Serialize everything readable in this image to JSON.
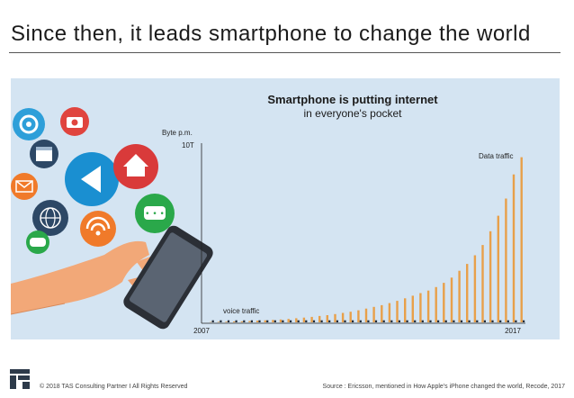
{
  "page": {
    "title": "Since then, it leads smartphone to change the world",
    "copyright": "© 2018 TAS Consulting Partner  I  All Rights Reserved",
    "source": "Source : Ericsson, mentioned in How Apple's iPhone changed the world, Recode, 2017"
  },
  "colors": {
    "panel": "#d4e4f2",
    "data_bar": "#e8a04a",
    "voice_bar": "#1f2a3a",
    "text": "#1b1b1b"
  },
  "icons": [
    "gear-icon",
    "camera-icon",
    "calendar-icon",
    "play-icon",
    "home-icon",
    "mail-icon",
    "globe-icon",
    "wifi-icon",
    "chat-icon",
    "gamepad-icon",
    "smartphone-icon",
    "hand-icon",
    "logo-icon"
  ],
  "chart_data": {
    "type": "bar",
    "title_line1": "Smartphone is putting internet",
    "title_line2": "in everyone's pocket",
    "ylabel": "Byte p.m.",
    "y_tick": "10T",
    "x_start_label": "2007",
    "x_end_label": "2017",
    "ylim": [
      0,
      10
    ],
    "series": [
      {
        "name": "Data traffic",
        "values": [
          0.02,
          0.03,
          0.04,
          0.05,
          0.06,
          0.08,
          0.1,
          0.12,
          0.14,
          0.17,
          0.2,
          0.24,
          0.28,
          0.32,
          0.37,
          0.42,
          0.48,
          0.55,
          0.62,
          0.7,
          0.8,
          0.9,
          1.0,
          1.12,
          1.25,
          1.4,
          1.55,
          1.7,
          1.85,
          2.05,
          2.3,
          2.6,
          3.0,
          3.4,
          3.9,
          4.5,
          5.3,
          6.2,
          7.2,
          8.6,
          9.6
        ]
      },
      {
        "name": "voice traffic",
        "values": [
          0.12,
          0.12,
          0.12,
          0.12,
          0.12,
          0.12,
          0.12,
          0.12,
          0.12,
          0.12,
          0.12,
          0.12,
          0.12,
          0.12,
          0.12,
          0.12,
          0.12,
          0.12,
          0.12,
          0.12,
          0.12,
          0.12,
          0.12,
          0.12,
          0.12,
          0.12,
          0.12,
          0.12,
          0.12,
          0.12,
          0.12,
          0.12,
          0.12,
          0.12,
          0.12,
          0.12,
          0.12,
          0.12,
          0.12,
          0.12,
          0.12
        ]
      }
    ]
  }
}
